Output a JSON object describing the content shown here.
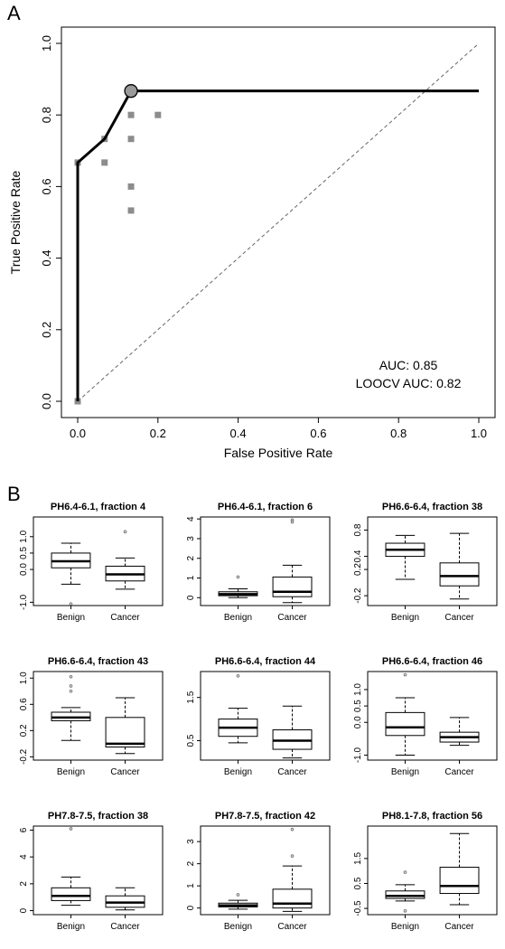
{
  "panel_a_label": "A",
  "panel_b_label": "B",
  "chart_data": [
    {
      "type": "line",
      "panel": "A",
      "xlabel": "False Positive Rate",
      "ylabel": "True Positive Rate",
      "xlim": [
        0,
        1
      ],
      "ylim": [
        0,
        1
      ],
      "xticks": [
        "0.0",
        "0.2",
        "0.4",
        "0.6",
        "0.8",
        "1.0"
      ],
      "yticks": [
        "0.0",
        "0.2",
        "0.4",
        "0.6",
        "0.8",
        "1.0"
      ],
      "roc_curve": {
        "x": [
          0,
          0,
          0.067,
          0.133,
          1.0
        ],
        "y": [
          0,
          0.667,
          0.733,
          0.867,
          0.867
        ]
      },
      "diagonal": {
        "x": [
          0,
          1
        ],
        "y": [
          0,
          1
        ]
      },
      "points": {
        "x": [
          0,
          0,
          0.067,
          0.067,
          0.133,
          0.133,
          0.133,
          0.133,
          0.2
        ],
        "y": [
          0,
          0.667,
          0.733,
          0.667,
          0.8,
          0.733,
          0.6,
          0.533,
          0.8
        ]
      },
      "highlight_point": {
        "x": 0.133,
        "y": 0.867
      },
      "annotations": [
        "AUC: 0.85",
        "LOOCV AUC: 0.82"
      ],
      "grid": false
    },
    {
      "type": "box",
      "panel": "B",
      "categories": [
        "Benign",
        "Cancer"
      ],
      "plots": [
        {
          "title": "PH6.4-6.1, fraction 4",
          "ylim": [
            -1.1,
            1.6
          ],
          "yticks": [
            "-1.0",
            "0.0",
            "0.5",
            "1.0"
          ],
          "tick_values": [
            -1,
            0,
            0.5,
            1
          ],
          "boxes": [
            {
              "low": -0.45,
              "q1": 0.05,
              "median": 0.25,
              "q3": 0.5,
              "high": 0.8,
              "outliers": [
                -1.05
              ]
            },
            {
              "low": -0.6,
              "q1": -0.35,
              "median": -0.15,
              "q3": 0.1,
              "high": 0.35,
              "outliers": [
                1.15
              ]
            }
          ]
        },
        {
          "title": "PH6.4-6.1, fraction 6",
          "ylim": [
            -0.4,
            4.1
          ],
          "yticks": [
            "0",
            "1",
            "2",
            "3",
            "4"
          ],
          "tick_values": [
            0,
            1,
            2,
            3,
            4
          ],
          "boxes": [
            {
              "low": 0,
              "q1": 0.1,
              "median": 0.18,
              "q3": 0.3,
              "high": 0.45,
              "outliers": [
                1.05
              ]
            },
            {
              "low": -0.25,
              "q1": 0.05,
              "median": 0.3,
              "q3": 1.05,
              "high": 1.65,
              "outliers": [
                3.85,
                3.95
              ]
            }
          ]
        },
        {
          "title": "PH6.6-6.4, fraction 38",
          "ylim": [
            -0.35,
            1.0
          ],
          "yticks": [
            "-0.2",
            "0.2",
            "0.4",
            "0.8"
          ],
          "tick_values": [
            -0.2,
            0.2,
            0.4,
            0.8
          ],
          "boxes": [
            {
              "low": 0.05,
              "q1": 0.4,
              "median": 0.5,
              "q3": 0.6,
              "high": 0.72,
              "outliers": []
            },
            {
              "low": -0.25,
              "q1": -0.05,
              "median": 0.1,
              "q3": 0.3,
              "high": 0.75,
              "outliers": []
            }
          ]
        },
        {
          "title": "PH6.6-6.4, fraction 43",
          "ylim": [
            -0.25,
            1.1
          ],
          "yticks": [
            "-0.2",
            "0.2",
            "0.6",
            "1.0"
          ],
          "tick_values": [
            -0.2,
            0.2,
            0.6,
            1.0
          ],
          "boxes": [
            {
              "low": 0.05,
              "q1": 0.35,
              "median": 0.4,
              "q3": 0.48,
              "high": 0.55,
              "outliers": [
                0.8,
                0.88,
                1.02
              ]
            },
            {
              "low": -0.15,
              "q1": -0.05,
              "median": 0.0,
              "q3": 0.4,
              "high": 0.7,
              "outliers": []
            }
          ]
        },
        {
          "title": "PH6.6-6.4, fraction 44",
          "ylim": [
            0.05,
            2.1
          ],
          "yticks": [
            "0.5",
            "1.5"
          ],
          "tick_values": [
            0.5,
            1.5
          ],
          "boxes": [
            {
              "low": 0.45,
              "q1": 0.6,
              "median": 0.8,
              "q3": 1.0,
              "high": 1.25,
              "outliers": [
                2.0
              ]
            },
            {
              "low": 0.1,
              "q1": 0.3,
              "median": 0.5,
              "q3": 0.75,
              "high": 1.3,
              "outliers": []
            }
          ]
        },
        {
          "title": "PH6.6-6.4, fraction 46",
          "ylim": [
            -1.15,
            1.55
          ],
          "yticks": [
            "-1.0",
            "0.0",
            "0.5",
            "1.0"
          ],
          "tick_values": [
            -1,
            0,
            0.5,
            1
          ],
          "boxes": [
            {
              "low": -1.0,
              "q1": -0.4,
              "median": -0.15,
              "q3": 0.3,
              "high": 0.75,
              "outliers": [
                1.45
              ]
            },
            {
              "low": -0.7,
              "q1": -0.6,
              "median": -0.45,
              "q3": -0.3,
              "high": 0.15,
              "outliers": []
            }
          ]
        },
        {
          "title": "PH7.8-7.5, fraction 38",
          "ylim": [
            -0.3,
            6.3
          ],
          "yticks": [
            "0",
            "2",
            "4",
            "6"
          ],
          "tick_values": [
            0,
            2,
            4,
            6
          ],
          "boxes": [
            {
              "low": 0.4,
              "q1": 0.75,
              "median": 1.1,
              "q3": 1.7,
              "high": 2.5,
              "outliers": [
                6.1
              ]
            },
            {
              "low": 0.05,
              "q1": 0.25,
              "median": 0.6,
              "q3": 1.1,
              "high": 1.7,
              "outliers": []
            }
          ]
        },
        {
          "title": "PH7.8-7.5, fraction 42",
          "ylim": [
            -0.3,
            3.7
          ],
          "yticks": [
            "0",
            "1",
            "2",
            "3"
          ],
          "tick_values": [
            0,
            1,
            2,
            3
          ],
          "boxes": [
            {
              "low": -0.05,
              "q1": 0.05,
              "median": 0.12,
              "q3": 0.22,
              "high": 0.35,
              "outliers": [
                0.6
              ]
            },
            {
              "low": -0.15,
              "q1": 0.0,
              "median": 0.2,
              "q3": 0.85,
              "high": 1.9,
              "outliers": [
                2.35,
                3.55
              ]
            }
          ]
        },
        {
          "title": "PH8.1-7.8, fraction 56",
          "ylim": [
            -0.75,
            2.8
          ],
          "yticks": [
            "-0.5",
            "0.5",
            "1.5"
          ],
          "tick_values": [
            -0.5,
            0.5,
            1.5
          ],
          "boxes": [
            {
              "low": -0.2,
              "q1": -0.1,
              "median": 0.0,
              "q3": 0.2,
              "high": 0.45,
              "outliers": [
                0.95,
                -0.6
              ]
            },
            {
              "low": -0.35,
              "q1": 0.1,
              "median": 0.4,
              "q3": 1.15,
              "high": 2.5,
              "outliers": []
            }
          ]
        }
      ]
    }
  ]
}
